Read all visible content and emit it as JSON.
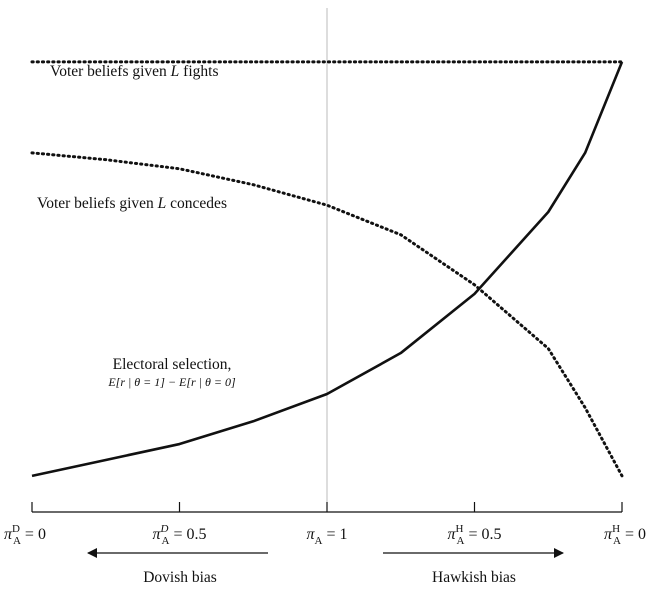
{
  "chart_data": {
    "type": "line",
    "series": [
      {
        "name": "Voter beliefs given L fights",
        "style": "dotted",
        "x": [
          0,
          4
        ],
        "y": [
          0.93,
          0.93
        ]
      },
      {
        "name": "Voter beliefs given L concedes",
        "style": "dotted",
        "x": [
          0,
          0.5,
          1,
          1.5,
          2,
          2.5,
          3,
          3.5,
          3.75,
          4
        ],
        "y": [
          0.73,
          0.715,
          0.695,
          0.66,
          0.615,
          0.55,
          0.44,
          0.3,
          0.17,
          0.02
        ]
      },
      {
        "name": "Electoral selection",
        "style": "solid",
        "x": [
          0,
          0.5,
          1,
          1.5,
          2,
          2.5,
          3,
          3.5,
          3.75,
          4
        ],
        "y": [
          0.02,
          0.055,
          0.09,
          0.14,
          0.2,
          0.29,
          0.42,
          0.6,
          0.73,
          0.93
        ]
      }
    ],
    "xlim": [
      0,
      4
    ],
    "ylim": [
      0,
      1
    ],
    "center_line_x": 2,
    "colors": {
      "curve": "#111111",
      "center_line": "#bbbbbb",
      "axis": "#111111"
    },
    "series_labels": {
      "fights": {
        "pre": "Voter beliefs given ",
        "var": "L",
        "post": " fights"
      },
      "concedes": {
        "pre": "Voter beliefs given ",
        "var": "L",
        "post": " concedes"
      },
      "selection": {
        "line1": "Electoral selection,",
        "line2": "E[r | θ = 1] − E[r | θ = 0]"
      }
    },
    "x_ticks": [
      {
        "x": 0,
        "base": "π",
        "sub": "A",
        "sup": "D",
        "sup_italic": false,
        "eq": " = 0"
      },
      {
        "x": 1,
        "base": "π",
        "sub": "A",
        "sup": "D",
        "sup_italic": true,
        "eq": " = 0.5"
      },
      {
        "x": 2,
        "base": "π",
        "sub": "A",
        "sup": "",
        "sup_italic": false,
        "eq": " = 1"
      },
      {
        "x": 3,
        "base": "π",
        "sub": "A",
        "sup": "H",
        "sup_italic": false,
        "eq": " = 0.5"
      },
      {
        "x": 4,
        "base": "π",
        "sub": "A",
        "sup": "H",
        "sup_italic": false,
        "eq": " = 0"
      }
    ],
    "bias_labels": {
      "left": "Dovish bias",
      "right": "Hawkish bias"
    }
  }
}
